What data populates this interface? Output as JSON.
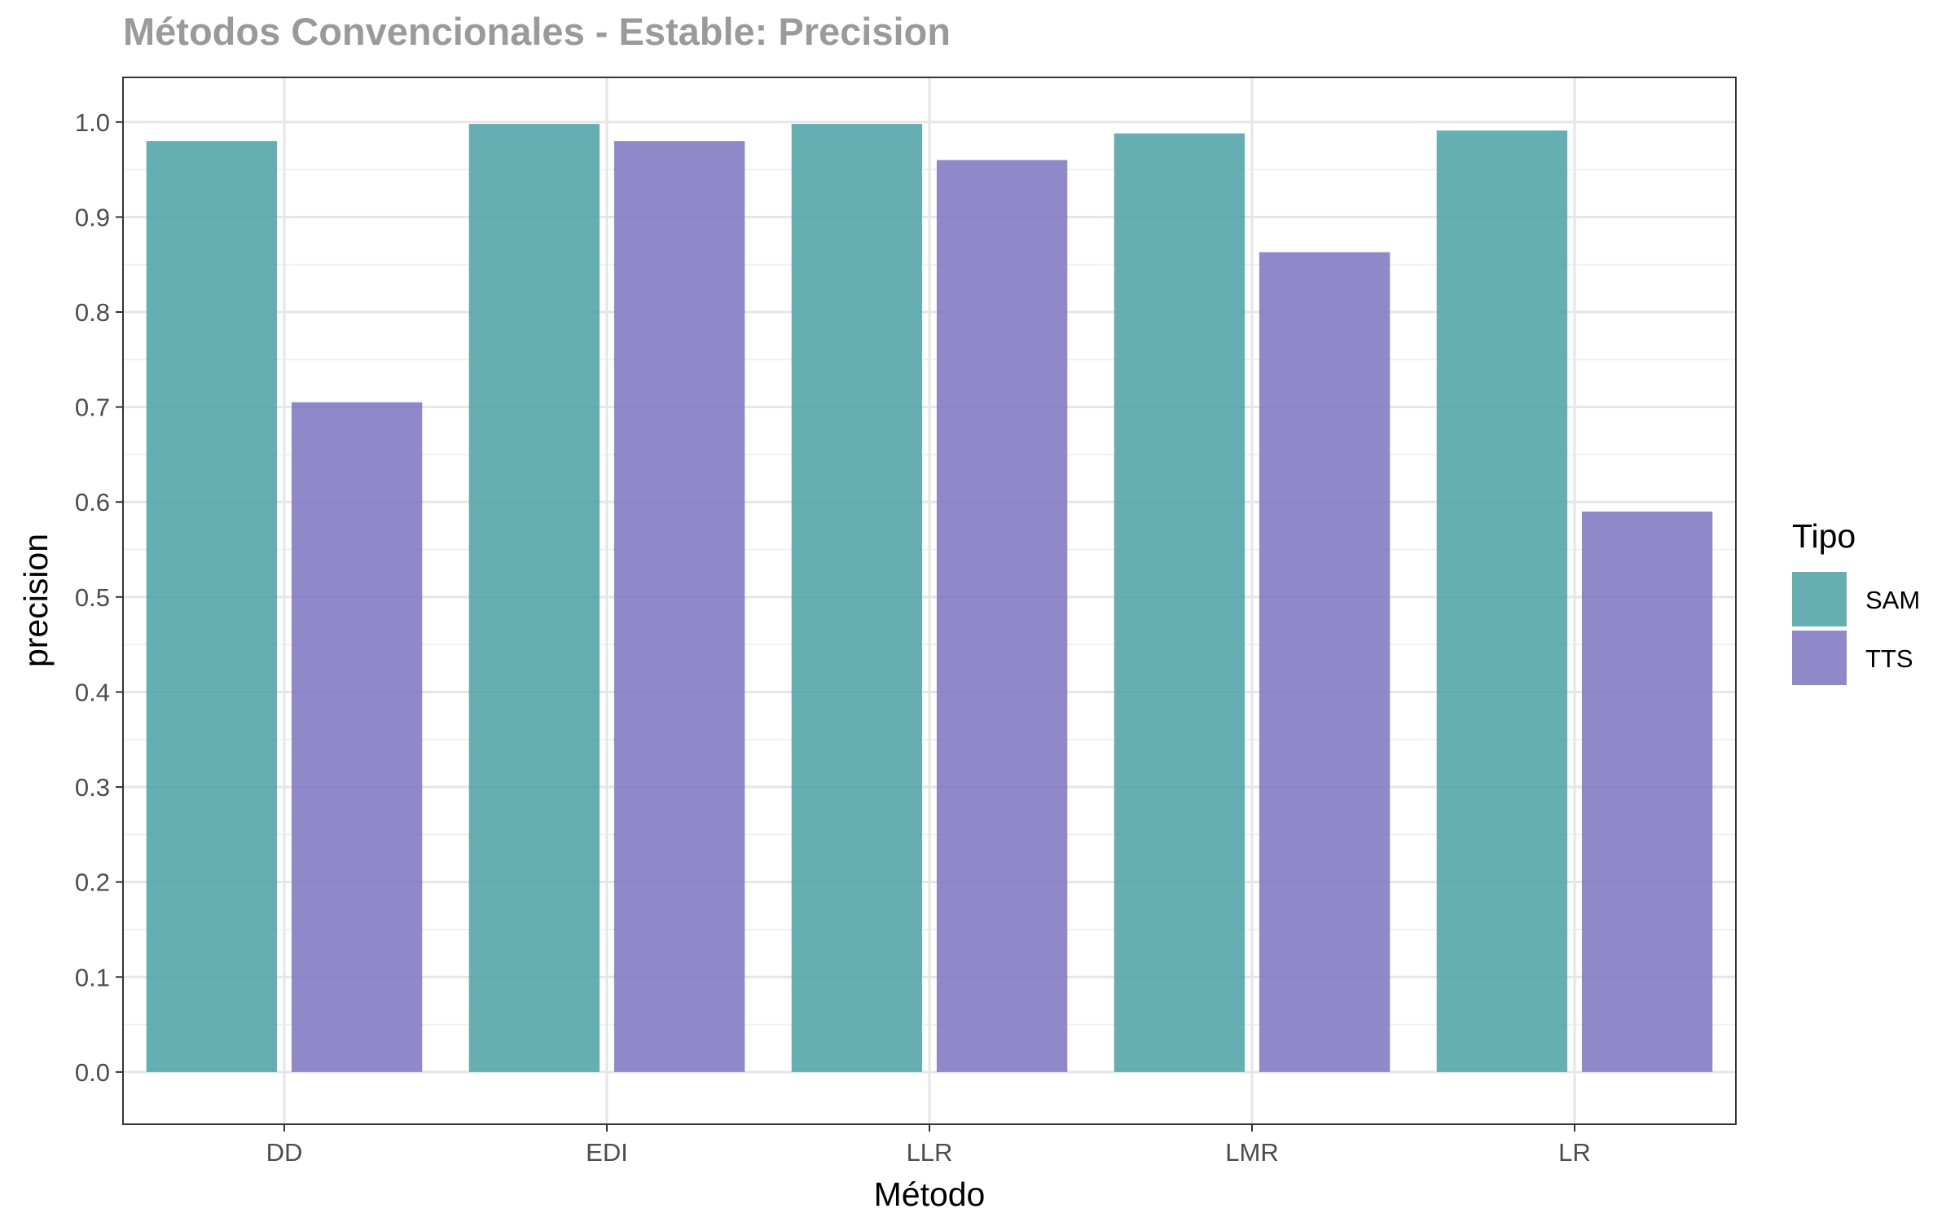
{
  "chart_data": {
    "type": "bar",
    "title": "Métodos Convencionales - Estable: Precision",
    "xlabel": "Método",
    "ylabel": "precision",
    "categories": [
      "DD",
      "EDI",
      "LLR",
      "LMR",
      "LR"
    ],
    "series": [
      {
        "name": "SAM",
        "color": "#4aa0a3",
        "values": [
          0.98,
          0.998,
          0.998,
          0.988,
          0.991
        ]
      },
      {
        "name": "TTS",
        "color": "#7b74c1",
        "values": [
          0.705,
          0.98,
          0.96,
          0.863,
          0.59
        ]
      }
    ],
    "ylim": [
      -0.055,
      1.047
    ],
    "yticks": [
      "0.0",
      "0.1",
      "0.2",
      "0.3",
      "0.4",
      "0.5",
      "0.6",
      "0.7",
      "0.8",
      "0.9",
      "1.0"
    ],
    "grid": true,
    "legend": {
      "title": "Tipo",
      "position": "right"
    }
  }
}
